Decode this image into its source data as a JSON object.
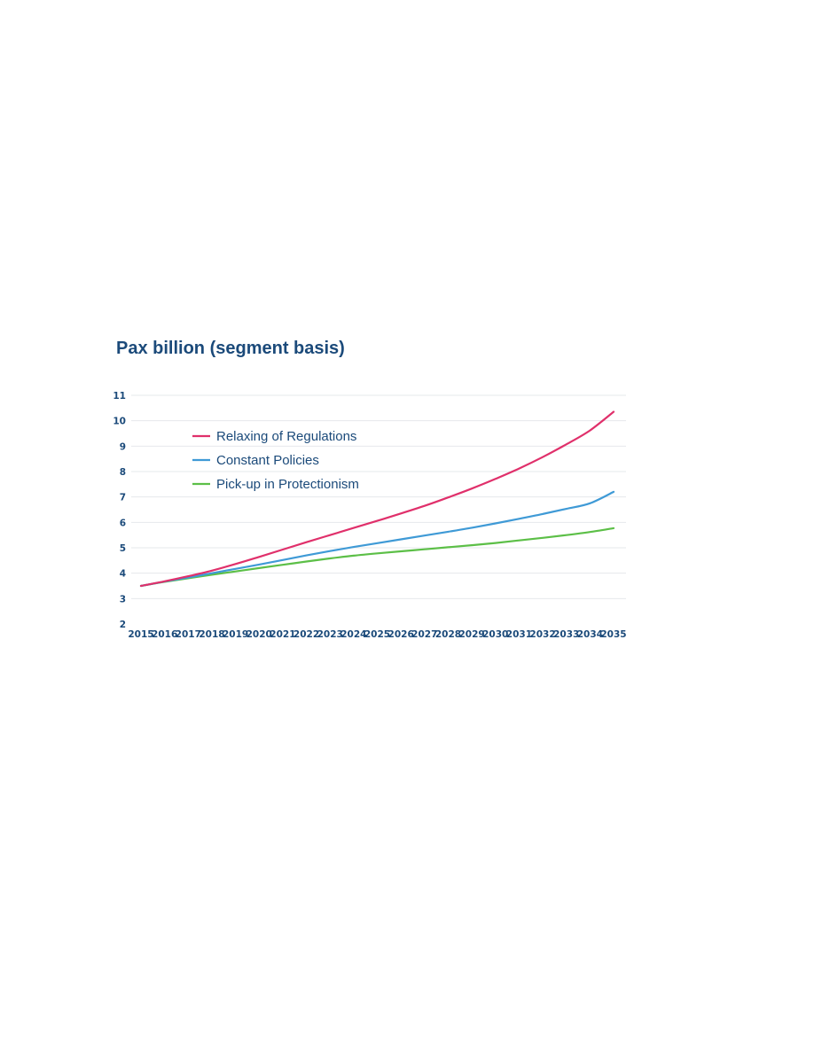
{
  "chart_data": {
    "type": "line",
    "title": "Pax billion (segment basis)",
    "xlabel": "",
    "ylabel": "",
    "x": [
      2015,
      2016,
      2017,
      2018,
      2019,
      2020,
      2021,
      2022,
      2023,
      2024,
      2025,
      2026,
      2027,
      2028,
      2029,
      2030,
      2031,
      2032,
      2033,
      2034,
      2035
    ],
    "ylim": [
      2,
      11
    ],
    "yticks": [
      2,
      3,
      4,
      5,
      6,
      7,
      8,
      9,
      10,
      11
    ],
    "grid": "horizontal",
    "legend_position": "top-left",
    "series": [
      {
        "name": "Relaxing of Regulations",
        "color": "#e0306b",
        "values": [
          3.5,
          3.68,
          3.88,
          4.1,
          4.36,
          4.64,
          4.93,
          5.22,
          5.5,
          5.78,
          6.06,
          6.35,
          6.65,
          6.98,
          7.33,
          7.71,
          8.12,
          8.57,
          9.07,
          9.62,
          10.35
        ]
      },
      {
        "name": "Constant Policies",
        "color": "#3f9ad6",
        "values": [
          3.5,
          3.67,
          3.83,
          4.0,
          4.17,
          4.34,
          4.52,
          4.7,
          4.87,
          5.03,
          5.18,
          5.33,
          5.48,
          5.63,
          5.79,
          5.96,
          6.14,
          6.33,
          6.53,
          6.75,
          7.2
        ]
      },
      {
        "name": "Pick-up in Protectionism",
        "color": "#5cbf47",
        "values": [
          3.5,
          3.66,
          3.8,
          3.94,
          4.07,
          4.2,
          4.33,
          4.46,
          4.58,
          4.69,
          4.78,
          4.86,
          4.94,
          5.02,
          5.1,
          5.19,
          5.29,
          5.39,
          5.5,
          5.62,
          5.77
        ]
      }
    ]
  }
}
